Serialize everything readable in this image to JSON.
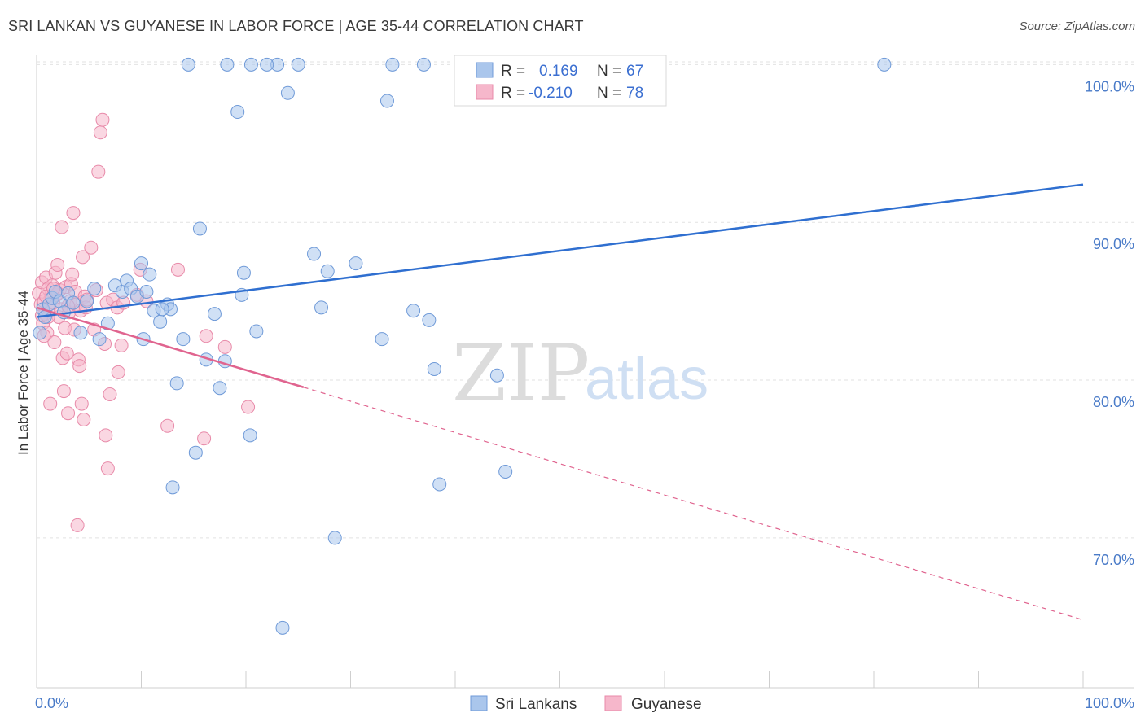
{
  "title": "SRI LANKAN VS GUYANESE IN LABOR FORCE | AGE 35-44 CORRELATION CHART",
  "source": "Source: ZipAtlas.com",
  "watermark": {
    "zip": "ZIP",
    "atlas": "atlas"
  },
  "legend_box": {
    "rows": [
      {
        "r_label": "R =",
        "r_value": "0.169",
        "n_label": "N =",
        "n_value": "67"
      },
      {
        "r_label": "R =",
        "r_value": "-0.210",
        "n_label": "N =",
        "n_value": "78"
      }
    ]
  },
  "bottom_legend": [
    "Sri Lankans",
    "Guyanese"
  ],
  "colors": {
    "blue_fill": "#aac6ec",
    "blue_stroke": "#6f9ad8",
    "blue_line": "#2f6fd0",
    "pink_fill": "#f6b7cb",
    "pink_stroke": "#e88aa9",
    "pink_line": "#e0648f",
    "grid": "#e2e2e2",
    "axis_text": "#4a7bc8"
  },
  "chart_data": {
    "type": "scatter",
    "title": "SRI LANKAN VS GUYANESE IN LABOR FORCE | AGE 35-44 CORRELATION CHART",
    "xlabel": "",
    "ylabel": "In Labor Force | Age 35-44",
    "xlim": [
      0,
      100
    ],
    "ylim": [
      60.5,
      101
    ],
    "x_tick_labels": [
      "0.0%",
      "100.0%"
    ],
    "y_ticks": [
      70,
      80,
      90,
      100
    ],
    "y_tick_labels": [
      "70.0%",
      "80.0%",
      "90.0%",
      "100.0%"
    ],
    "grid": true,
    "series": [
      {
        "name": "Sri Lankans",
        "R": 0.169,
        "N": 67,
        "trend": {
          "x0": 0,
          "y0": 84.0,
          "x1": 100,
          "y1": 92.4,
          "dashed_from": null
        },
        "points": [
          [
            0.3,
            83.0
          ],
          [
            0.6,
            84.5
          ],
          [
            0.8,
            84.0
          ],
          [
            1.2,
            84.8
          ],
          [
            1.5,
            85.2
          ],
          [
            1.8,
            85.6
          ],
          [
            2.2,
            85.0
          ],
          [
            2.6,
            84.3
          ],
          [
            3.0,
            85.5
          ],
          [
            3.5,
            84.9
          ],
          [
            4.2,
            83.0
          ],
          [
            4.8,
            85.0
          ],
          [
            5.5,
            85.8
          ],
          [
            6.0,
            82.6
          ],
          [
            6.8,
            83.6
          ],
          [
            7.5,
            86.0
          ],
          [
            8.2,
            85.6
          ],
          [
            8.6,
            86.3
          ],
          [
            9.0,
            85.8
          ],
          [
            9.6,
            85.3
          ],
          [
            10.0,
            87.4
          ],
          [
            10.2,
            82.6
          ],
          [
            10.5,
            85.6
          ],
          [
            10.8,
            86.7
          ],
          [
            11.2,
            84.4
          ],
          [
            11.8,
            83.7
          ],
          [
            12.5,
            84.8
          ],
          [
            12.8,
            84.5
          ],
          [
            13.4,
            79.8
          ],
          [
            14.0,
            82.6
          ],
          [
            15.2,
            75.4
          ],
          [
            15.6,
            89.6
          ],
          [
            16.2,
            81.3
          ],
          [
            17.0,
            84.2
          ],
          [
            17.5,
            79.5
          ],
          [
            18.0,
            81.2
          ],
          [
            19.2,
            97.0
          ],
          [
            19.6,
            85.4
          ],
          [
            19.8,
            86.8
          ],
          [
            20.4,
            76.5
          ],
          [
            21.0,
            83.1
          ],
          [
            23.0,
            100.0
          ],
          [
            24.0,
            98.2
          ],
          [
            25.0,
            100.0
          ],
          [
            26.5,
            88.0
          ],
          [
            27.2,
            84.6
          ],
          [
            27.8,
            86.9
          ],
          [
            28.5,
            70.0
          ],
          [
            30.5,
            87.4
          ],
          [
            33.0,
            82.6
          ],
          [
            33.5,
            97.7
          ],
          [
            34.0,
            100.0
          ],
          [
            36.0,
            84.4
          ],
          [
            37.5,
            83.8
          ],
          [
            38.0,
            80.7
          ],
          [
            38.5,
            73.4
          ],
          [
            44.0,
            80.3
          ],
          [
            44.8,
            74.2
          ],
          [
            13.0,
            73.2
          ],
          [
            14.5,
            100.0
          ],
          [
            18.2,
            100.0
          ],
          [
            20.5,
            100.0
          ],
          [
            22.0,
            100.0
          ],
          [
            37.0,
            100.0
          ],
          [
            81.0,
            100.0
          ],
          [
            23.5,
            64.3
          ],
          [
            12.0,
            84.5
          ]
        ]
      },
      {
        "name": "Guyanese",
        "R": -0.21,
        "N": 78,
        "trend": {
          "x0": 0,
          "y0": 84.6,
          "x1": 100,
          "y1": 64.8,
          "dashed_from": 25.5
        },
        "points": [
          [
            0.2,
            85.5
          ],
          [
            0.4,
            84.8
          ],
          [
            0.5,
            86.2
          ],
          [
            0.6,
            83.6
          ],
          [
            0.7,
            85.0
          ],
          [
            0.8,
            84.2
          ],
          [
            0.9,
            86.5
          ],
          [
            1.0,
            83.0
          ],
          [
            1.1,
            85.8
          ],
          [
            1.2,
            84.6
          ],
          [
            1.3,
            78.5
          ],
          [
            1.4,
            85.2
          ],
          [
            1.5,
            86.0
          ],
          [
            1.6,
            84.9
          ],
          [
            1.7,
            82.4
          ],
          [
            1.8,
            86.8
          ],
          [
            1.9,
            85.4
          ],
          [
            2.0,
            87.3
          ],
          [
            2.1,
            84.0
          ],
          [
            2.2,
            85.7
          ],
          [
            2.3,
            84.5
          ],
          [
            2.4,
            89.7
          ],
          [
            2.5,
            81.4
          ],
          [
            2.6,
            79.3
          ],
          [
            2.7,
            83.3
          ],
          [
            2.8,
            85.9
          ],
          [
            2.9,
            81.7
          ],
          [
            3.0,
            77.9
          ],
          [
            3.1,
            84.3
          ],
          [
            3.2,
            85.0
          ],
          [
            3.3,
            86.1
          ],
          [
            3.4,
            86.7
          ],
          [
            3.5,
            90.6
          ],
          [
            3.6,
            83.2
          ],
          [
            3.7,
            85.6
          ],
          [
            3.8,
            84.8
          ],
          [
            3.9,
            70.8
          ],
          [
            4.0,
            81.3
          ],
          [
            4.1,
            80.9
          ],
          [
            4.2,
            84.4
          ],
          [
            4.3,
            78.5
          ],
          [
            4.4,
            87.8
          ],
          [
            4.5,
            77.5
          ],
          [
            4.6,
            85.3
          ],
          [
            4.7,
            84.6
          ],
          [
            4.8,
            85.1
          ],
          [
            5.2,
            88.4
          ],
          [
            5.5,
            83.2
          ],
          [
            5.7,
            85.7
          ],
          [
            5.9,
            93.2
          ],
          [
            6.1,
            95.7
          ],
          [
            6.3,
            96.5
          ],
          [
            6.5,
            82.3
          ],
          [
            6.6,
            76.5
          ],
          [
            6.7,
            84.9
          ],
          [
            6.8,
            74.4
          ],
          [
            7.0,
            79.1
          ],
          [
            7.3,
            85.1
          ],
          [
            7.7,
            84.6
          ],
          [
            7.8,
            80.5
          ],
          [
            8.1,
            82.2
          ],
          [
            8.3,
            84.9
          ],
          [
            9.6,
            85.4
          ],
          [
            9.9,
            87.0
          ],
          [
            10.5,
            85.0
          ],
          [
            12.5,
            77.1
          ],
          [
            13.5,
            87.0
          ],
          [
            16.0,
            76.3
          ],
          [
            16.2,
            82.8
          ],
          [
            18.0,
            82.1
          ],
          [
            20.2,
            78.3
          ],
          [
            0.5,
            84.1
          ],
          [
            0.9,
            85.3
          ],
          [
            1.1,
            84.0
          ],
          [
            2.0,
            85.5
          ],
          [
            3.0,
            84.7
          ],
          [
            1.6,
            85.8
          ],
          [
            0.7,
            82.8
          ]
        ]
      }
    ]
  }
}
